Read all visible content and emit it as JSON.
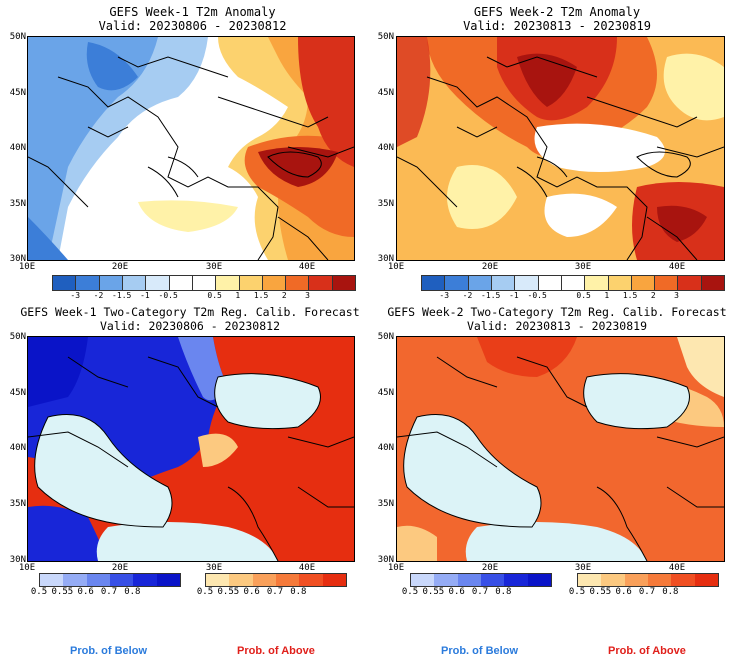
{
  "panels": {
    "tl": {
      "title1": "GEFS Week-1 T2m Anomaly",
      "title2": "Valid: 20230806 - 20230812"
    },
    "tr": {
      "title1": "GEFS Week-2 T2m Anomaly",
      "title2": "Valid: 20230813 - 20230819"
    },
    "bl": {
      "title1": "GEFS Week-1 Two-Category T2m Reg. Calib. Forecast",
      "title2": "Valid: 20230806 - 20230812"
    },
    "br": {
      "title1": "GEFS Week-2 Two-Category T2m Reg. Calib. Forecast",
      "title2": "Valid: 20230813 - 20230819"
    }
  },
  "axes": {
    "lat": [
      "50N",
      "45N",
      "40N",
      "35N",
      "30N"
    ],
    "lon": [
      "10E",
      "20E",
      "30E",
      "40E"
    ]
  },
  "anomaly_colorbar": {
    "ticks": [
      "-3",
      "-2",
      "-1.5",
      "-1",
      "-0.5",
      "0.5",
      "1",
      "1.5",
      "2",
      "3"
    ],
    "colors": [
      "#1f5fbf",
      "#3c7ed8",
      "#6aa4e8",
      "#a6ccf2",
      "#d8eafa",
      "#ffffff",
      "#ffffff",
      "#fff2a8",
      "#fcd26e",
      "#f9a53f",
      "#f06a26",
      "#d8301a",
      "#a8140f"
    ]
  },
  "below_colorbar": {
    "ticks": [
      "0.5",
      "0.55",
      "0.6",
      "0.7",
      "0.8"
    ],
    "colors": [
      "#c9d8fb",
      "#95acf5",
      "#6a86ef",
      "#3850e6",
      "#1826d8",
      "#0a14c8"
    ]
  },
  "above_colorbar": {
    "ticks": [
      "0.5",
      "0.55",
      "0.6",
      "0.7",
      "0.8"
    ],
    "colors": [
      "#fde7b0",
      "#fcc980",
      "#f9a05a",
      "#f57a3a",
      "#f04f22",
      "#e62e10"
    ]
  },
  "footer": {
    "below_label": "Prob. of Below",
    "above_label": "Prob. of Above",
    "below_color": "#2b7bdc",
    "above_color": "#e0201b"
  }
}
